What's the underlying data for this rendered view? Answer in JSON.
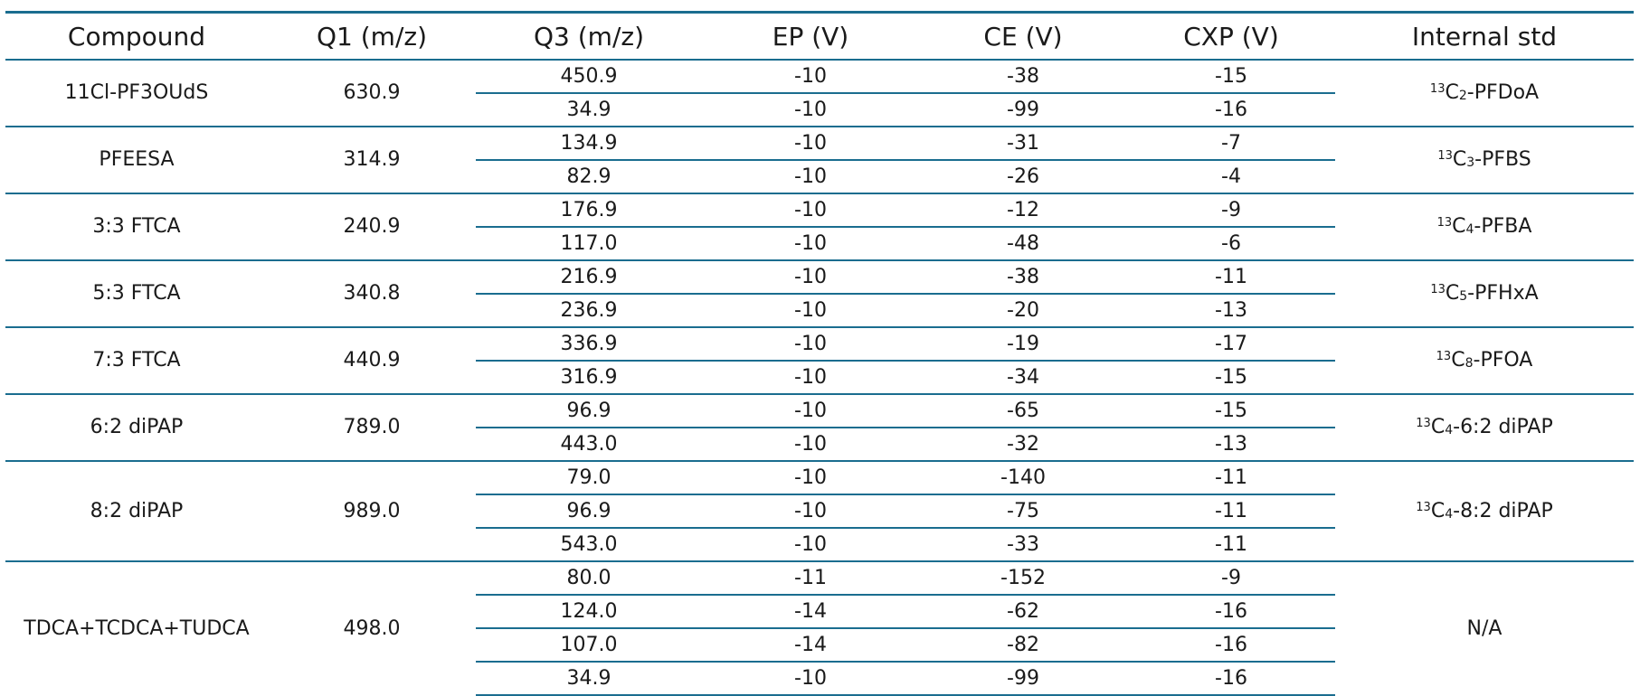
{
  "table": {
    "headers": [
      "Compound",
      "Q1 (m/z)",
      "Q3 (m/z)",
      "EP (V)",
      "CE (V)",
      "CXP (V)",
      "Internal std"
    ],
    "groups": [
      {
        "compound": "11Cl-PF3OUdS",
        "q1": "630.9",
        "internal_std": {
          "sup": "13",
          "base": "C",
          "sub": "2",
          "rest": "-PFDoA"
        },
        "rows": [
          {
            "q3": "450.9",
            "ep": "-10",
            "ce": "-38",
            "cxp": "-15"
          },
          {
            "q3": "34.9",
            "ep": "-10",
            "ce": "-99",
            "cxp": "-16"
          }
        ]
      },
      {
        "compound": "PFEESA",
        "q1": "314.9",
        "internal_std": {
          "sup": "13",
          "base": "C",
          "sub": "3",
          "rest": "-PFBS"
        },
        "rows": [
          {
            "q3": "134.9",
            "ep": "-10",
            "ce": "-31",
            "cxp": "-7"
          },
          {
            "q3": "82.9",
            "ep": "-10",
            "ce": "-26",
            "cxp": "-4"
          }
        ]
      },
      {
        "compound": "3:3 FTCA",
        "q1": "240.9",
        "internal_std": {
          "sup": "13",
          "base": "C",
          "sub": "4",
          "rest": "-PFBA"
        },
        "rows": [
          {
            "q3": "176.9",
            "ep": "-10",
            "ce": "-12",
            "cxp": "-9"
          },
          {
            "q3": "117.0",
            "ep": "-10",
            "ce": "-48",
            "cxp": "-6"
          }
        ]
      },
      {
        "compound": "5:3 FTCA",
        "q1": "340.8",
        "internal_std": {
          "sup": "13",
          "base": "C",
          "sub": "5",
          "rest": "-PFHxA"
        },
        "rows": [
          {
            "q3": "216.9",
            "ep": "-10",
            "ce": "-38",
            "cxp": "-11"
          },
          {
            "q3": "236.9",
            "ep": "-10",
            "ce": "-20",
            "cxp": "-13"
          }
        ]
      },
      {
        "compound": "7:3 FTCA",
        "q1": "440.9",
        "internal_std": {
          "sup": "13",
          "base": "C",
          "sub": "8",
          "rest": "-PFOA"
        },
        "rows": [
          {
            "q3": "336.9",
            "ep": "-10",
            "ce": "-19",
            "cxp": "-17"
          },
          {
            "q3": "316.9",
            "ep": "-10",
            "ce": "-34",
            "cxp": "-15"
          }
        ]
      },
      {
        "compound": "6:2 diPAP",
        "q1": "789.0",
        "internal_std": {
          "sup": "13",
          "base": "C",
          "sub": "4",
          "rest": "-6:2 diPAP"
        },
        "rows": [
          {
            "q3": "96.9",
            "ep": "-10",
            "ce": "-65",
            "cxp": "-15"
          },
          {
            "q3": "443.0",
            "ep": "-10",
            "ce": "-32",
            "cxp": "-13"
          }
        ]
      },
      {
        "compound": "8:2 diPAP",
        "q1": "989.0",
        "internal_std": {
          "sup": "13",
          "base": "C",
          "sub": "4",
          "rest": "-8:2 diPAP"
        },
        "rows": [
          {
            "q3": "79.0",
            "ep": "-10",
            "ce": "-140",
            "cxp": "-11"
          },
          {
            "q3": "96.9",
            "ep": "-10",
            "ce": "-75",
            "cxp": "-11"
          },
          {
            "q3": "543.0",
            "ep": "-10",
            "ce": "-33",
            "cxp": "-11"
          }
        ]
      },
      {
        "compound": "TDCA+TCDCA+TUDCA",
        "q1": "498.0",
        "internal_std": {
          "plain": "N/A"
        },
        "rows": [
          {
            "q3": "80.0",
            "ep": "-11",
            "ce": "-152",
            "cxp": "-9"
          },
          {
            "q3": "124.0",
            "ep": "-14",
            "ce": "-62",
            "cxp": "-16"
          },
          {
            "q3": "107.0",
            "ep": "-14",
            "ce": "-82",
            "cxp": "-16"
          },
          {
            "q3": "34.9",
            "ep": "-10",
            "ce": "-99",
            "cxp": "-16"
          }
        ]
      }
    ]
  },
  "colors": {
    "rule": "#1a6d8f",
    "text": "#1a1a1a",
    "background": "#ffffff"
  }
}
